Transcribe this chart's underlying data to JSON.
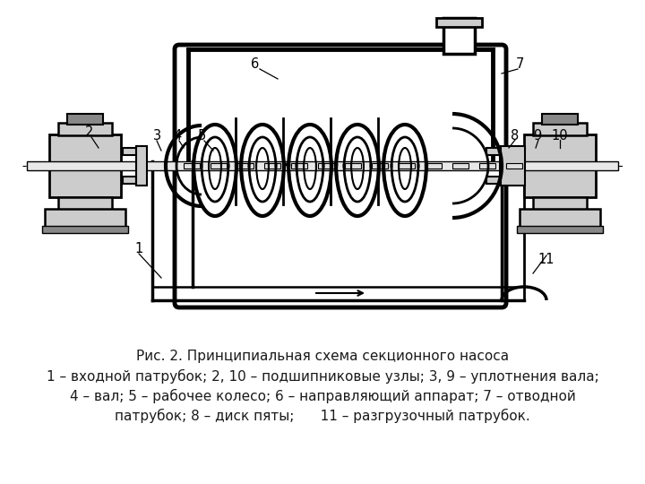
{
  "title_line1": "Рис. 2. Принципиальная схема секционного насоса",
  "title_line2": "1 – входной патрубок; 2, 10 – подшипниковые узлы; 3, 9 – уплотнения вала;",
  "title_line3": "4 – вал; 5 – рабочее колесо; 6 – направляющий аппарат; 7 – отводной",
  "title_line4": "патрубок; 8 – диск пяты;      11 – разгрузочный патрубок.",
  "bg_color": "#ffffff",
  "text_color": "#1a1a1a",
  "fig_width": 7.2,
  "fig_height": 5.4,
  "dpi": 100,
  "caption_fontsize": 11.0
}
